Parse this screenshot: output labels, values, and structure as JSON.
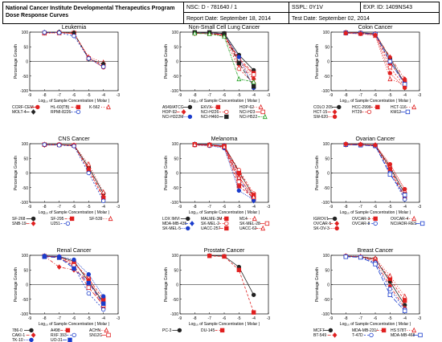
{
  "header": {
    "org_line1": "National Cancer Institute Developmental Therapeutics Program",
    "org_line2": "Dose Response Curves",
    "nsc": "NSC: D - 781640 / 1",
    "sspl": "SSPL: 0Y1V",
    "exp_id": "EXP. ID: 1409NS43",
    "report_date": "Report Date: September 18, 2014",
    "test_date": "Test Date: September 02, 2014"
  },
  "chart_data": [
    {
      "type": "line",
      "title": "Leukemia",
      "xlabel": "Log₁₀ of Sample Concentration ( Molar )",
      "ylabel": "Percentage Growth",
      "x": [
        -8,
        -7,
        -6,
        -5,
        -4
      ],
      "xlim": [
        -9,
        -3
      ],
      "ylim": [
        -100,
        100
      ],
      "xticks": [
        -9,
        -8,
        -7,
        -6,
        -5,
        -4,
        -3
      ],
      "yticks": [
        -100,
        -50,
        0,
        50,
        100
      ],
      "grid": false,
      "series": [
        {
          "name": "CCRF-CEM",
          "color": "#e02020",
          "values": [
            98,
            99,
            95,
            12,
            -20
          ]
        },
        {
          "name": "HL-60(TB)",
          "color": "#e02020",
          "values": [
            97,
            98,
            97,
            10,
            -12
          ]
        },
        {
          "name": "K-562",
          "color": "#e02020",
          "values": [
            96,
            97,
            96,
            15,
            -3
          ]
        },
        {
          "name": "MOLT-4",
          "color": "#222222",
          "values": [
            99,
            100,
            98,
            8,
            -8
          ]
        },
        {
          "name": "RPMI-8226",
          "color": "#1a3ccc",
          "values": [
            99,
            98,
            87,
            10,
            -18
          ]
        }
      ]
    },
    {
      "type": "line",
      "title": "Non-Small Cell Lung Cancer",
      "xlabel": "Log₁₀ of Sample Concentration ( Molar )",
      "ylabel": "Percentage Growth",
      "x": [
        -8,
        -7,
        -6,
        -5,
        -4
      ],
      "xlim": [
        -9,
        -3
      ],
      "ylim": [
        -100,
        100
      ],
      "xticks": [
        -9,
        -8,
        -7,
        -6,
        -5,
        -4,
        -3
      ],
      "yticks": [
        -100,
        -50,
        0,
        50,
        100
      ],
      "grid": false,
      "series": [
        {
          "name": "A549/ATCC",
          "color": "#222222",
          "values": [
            99,
            98,
            96,
            22,
            -30
          ]
        },
        {
          "name": "EKVX",
          "color": "#e02020",
          "values": [
            97,
            95,
            90,
            10,
            -40
          ]
        },
        {
          "name": "HOP-62",
          "color": "#e02020",
          "values": [
            98,
            96,
            92,
            0,
            -55
          ]
        },
        {
          "name": "HOP-92",
          "color": "#e02020",
          "values": [
            95,
            96,
            92,
            -10,
            -60
          ]
        },
        {
          "name": "NCI-H226",
          "color": "#e02020",
          "values": [
            96,
            95,
            88,
            -25,
            -75
          ]
        },
        {
          "name": "NCI-H23",
          "color": "#e02020",
          "values": [
            97,
            96,
            90,
            5,
            -45
          ]
        },
        {
          "name": "NCI-H322M",
          "color": "#1a3ccc",
          "values": [
            98,
            97,
            94,
            15,
            -90
          ]
        },
        {
          "name": "NCI-H460",
          "color": "#222222",
          "values": [
            99,
            99,
            95,
            -5,
            -85
          ]
        },
        {
          "name": "NCI-H522",
          "color": "#22a022",
          "values": [
            96,
            94,
            85,
            -60,
            -70
          ]
        }
      ]
    },
    {
      "type": "line",
      "title": "Colon Cancer",
      "xlabel": "Log₁₀ of Sample Concentration ( Molar )",
      "ylabel": "Percentage Growth",
      "x": [
        -8,
        -7,
        -6,
        -5,
        -4
      ],
      "xlim": [
        -9,
        -3
      ],
      "ylim": [
        -100,
        100
      ],
      "xticks": [
        -9,
        -8,
        -7,
        -6,
        -5,
        -4,
        -3
      ],
      "yticks": [
        -100,
        -50,
        0,
        50,
        100
      ],
      "grid": false,
      "series": [
        {
          "name": "COLO 205",
          "color": "#222222",
          "values": [
            99,
            98,
            95,
            10,
            -75
          ]
        },
        {
          "name": "HCC-2998",
          "color": "#e02020",
          "values": [
            98,
            96,
            93,
            -5,
            -70
          ]
        },
        {
          "name": "HCT-116",
          "color": "#e02020",
          "values": [
            97,
            95,
            88,
            -60,
            -80
          ]
        },
        {
          "name": "HCT-15",
          "color": "#e02020",
          "values": [
            98,
            97,
            94,
            15,
            -60
          ]
        },
        {
          "name": "HT29",
          "color": "#e02020",
          "values": [
            99,
            97,
            92,
            -20,
            -85
          ]
        },
        {
          "name": "KM12",
          "color": "#1a3ccc",
          "values": [
            97,
            96,
            93,
            0,
            -78
          ]
        },
        {
          "name": "SW-620",
          "color": "#e02020",
          "values": [
            96,
            94,
            90,
            -40,
            -90
          ]
        }
      ]
    },
    {
      "type": "line",
      "title": "CNS Cancer",
      "xlabel": "Log₁₀ of Sample Concentration ( Molar )",
      "ylabel": "Percentage Growth",
      "x": [
        -8,
        -7,
        -6,
        -5,
        -4
      ],
      "xlim": [
        -9,
        -3
      ],
      "ylim": [
        -100,
        100
      ],
      "xticks": [
        -9,
        -8,
        -7,
        -6,
        -5,
        -4,
        -3
      ],
      "yticks": [
        -100,
        -50,
        0,
        50,
        100
      ],
      "grid": false,
      "series": [
        {
          "name": "SF-268",
          "color": "#222222",
          "values": [
            96,
            97,
            95,
            20,
            -70
          ]
        },
        {
          "name": "SF-295",
          "color": "#e02020",
          "values": [
            97,
            96,
            94,
            10,
            -85
          ]
        },
        {
          "name": "SF-539",
          "color": "#e02020",
          "values": [
            98,
            97,
            95,
            30,
            -65
          ]
        },
        {
          "name": "SNB-19",
          "color": "#e02020",
          "values": [
            95,
            96,
            93,
            15,
            -80
          ]
        },
        {
          "name": "U251",
          "color": "#1a3ccc",
          "values": [
            97,
            95,
            92,
            0,
            -95
          ]
        }
      ]
    },
    {
      "type": "line",
      "title": "Melanoma",
      "xlabel": "Log₁₀ of Sample Concentration ( Molar )",
      "ylabel": "Percentage Growth",
      "x": [
        -8,
        -7,
        -6,
        -5,
        -4
      ],
      "xlim": [
        -9,
        -3
      ],
      "ylim": [
        -100,
        100
      ],
      "xticks": [
        -9,
        -8,
        -7,
        -6,
        -5,
        -4,
        -3
      ],
      "yticks": [
        -100,
        -50,
        0,
        50,
        100
      ],
      "grid": false,
      "series": [
        {
          "name": "LOX IMVI",
          "color": "#222222",
          "values": [
            98,
            97,
            93,
            5,
            -80
          ]
        },
        {
          "name": "MALME-3M",
          "color": "#e02020",
          "values": [
            96,
            95,
            88,
            -45,
            -85
          ]
        },
        {
          "name": "M14",
          "color": "#e02020",
          "values": [
            97,
            96,
            92,
            -10,
            -90
          ]
        },
        {
          "name": "MDA-MB-435",
          "color": "#1a3ccc",
          "values": [
            99,
            97,
            94,
            -20,
            -95
          ]
        },
        {
          "name": "SK-MEL-2",
          "color": "#e02020",
          "values": [
            95,
            94,
            90,
            10,
            -70
          ]
        },
        {
          "name": "SK-MEL-28",
          "color": "#e02020",
          "values": [
            97,
            95,
            91,
            -30,
            -88
          ]
        },
        {
          "name": "SK-MEL-5",
          "color": "#1a3ccc",
          "values": [
            96,
            93,
            85,
            -60,
            -92
          ]
        },
        {
          "name": "UACC-257",
          "color": "#e02020",
          "values": [
            98,
            96,
            92,
            0,
            -75
          ]
        },
        {
          "name": "UACC-62",
          "color": "#e02020",
          "values": [
            97,
            95,
            90,
            -15,
            -82
          ]
        }
      ]
    },
    {
      "type": "line",
      "title": "Ovarian Cancer",
      "xlabel": "Log₁₀ of Sample Concentration ( Molar )",
      "ylabel": "Percentage Growth",
      "x": [
        -8,
        -7,
        -6,
        -5,
        -4
      ],
      "xlim": [
        -9,
        -3
      ],
      "ylim": [
        -100,
        100
      ],
      "xticks": [
        -9,
        -8,
        -7,
        -6,
        -5,
        -4,
        -3
      ],
      "yticks": [
        -100,
        -50,
        0,
        50,
        100
      ],
      "grid": false,
      "series": [
        {
          "name": "IGROV1",
          "color": "#222222",
          "values": [
            98,
            97,
            95,
            20,
            -70
          ]
        },
        {
          "name": "OVCAR-3",
          "color": "#e02020",
          "values": [
            97,
            96,
            93,
            10,
            -85
          ]
        },
        {
          "name": "OVCAR-4",
          "color": "#e02020",
          "values": [
            99,
            98,
            96,
            25,
            -60
          ]
        },
        {
          "name": "OVCAR-5",
          "color": "#e02020",
          "values": [
            96,
            97,
            94,
            15,
            -80
          ]
        },
        {
          "name": "OVCAR-8",
          "color": "#1a3ccc",
          "values": [
            98,
            96,
            92,
            0,
            -90
          ]
        },
        {
          "name": "NCI/ADR-RES",
          "color": "#1a3ccc",
          "values": [
            97,
            95,
            93,
            -5,
            -75
          ]
        },
        {
          "name": "SK-OV-3",
          "color": "#e02020",
          "values": [
            99,
            97,
            95,
            30,
            -55
          ]
        }
      ]
    },
    {
      "type": "line",
      "title": "Renal Cancer",
      "xlabel": "Log₁₀ of Sample Concentration ( Molar )",
      "ylabel": "Percentage Growth",
      "x": [
        -8,
        -7,
        -6,
        -5,
        -4
      ],
      "xlim": [
        -9,
        -3
      ],
      "ylim": [
        -100,
        100
      ],
      "xticks": [
        -9,
        -8,
        -7,
        -6,
        -5,
        -4,
        -3
      ],
      "yticks": [
        -100,
        -50,
        0,
        50,
        100
      ],
      "grid": false,
      "series": [
        {
          "name": "786-0",
          "color": "#222222",
          "values": [
            97,
            95,
            80,
            10,
            -60
          ]
        },
        {
          "name": "A498",
          "color": "#e02020",
          "values": [
            96,
            94,
            75,
            20,
            -50
          ]
        },
        {
          "name": "ACHN",
          "color": "#e02020",
          "values": [
            98,
            95,
            70,
            25,
            -75
          ]
        },
        {
          "name": "CAKI-1",
          "color": "#e02020",
          "values": [
            97,
            60,
            50,
            15,
            -80
          ]
        },
        {
          "name": "RXF 393",
          "color": "#1a3ccc",
          "values": [
            96,
            93,
            60,
            -30,
            -85
          ]
        },
        {
          "name": "SN12C",
          "color": "#e02020",
          "values": [
            97,
            92,
            65,
            -10,
            -70
          ]
        },
        {
          "name": "TK-10",
          "color": "#1a3ccc",
          "values": [
            98,
            96,
            85,
            35,
            -40
          ]
        },
        {
          "name": "UO-31",
          "color": "#1a3ccc",
          "values": [
            95,
            92,
            55,
            5,
            -65
          ]
        }
      ]
    },
    {
      "type": "line",
      "title": "Prostate Cancer",
      "xlabel": "Log₁₀ of Sample Concentration ( Molar )",
      "ylabel": "Percentage Growth",
      "x": [
        -8,
        -7,
        -6,
        -5,
        -4
      ],
      "xlim": [
        -9,
        -3
      ],
      "ylim": [
        -100,
        100
      ],
      "xticks": [
        -9,
        -8,
        -7,
        -6,
        -5,
        -4,
        -3
      ],
      "yticks": [
        -100,
        -50,
        0,
        50,
        100
      ],
      "grid": false,
      "series": [
        {
          "name": "PC-3",
          "color": "#222222",
          "values": [
            null,
            99,
            97,
            60,
            -35
          ]
        },
        {
          "name": "DU-145",
          "color": "#e02020",
          "values": [
            null,
            98,
            96,
            50,
            -95
          ]
        }
      ]
    },
    {
      "type": "line",
      "title": "Breast Cancer",
      "xlabel": "Log₁₀ of Sample Concentration ( Molar )",
      "ylabel": "Percentage Growth",
      "x": [
        -8,
        -7,
        -6,
        -5,
        -4
      ],
      "xlim": [
        -9,
        -3
      ],
      "ylim": [
        -100,
        100
      ],
      "xticks": [
        -9,
        -8,
        -7,
        -6,
        -5,
        -4,
        -3
      ],
      "yticks": [
        -100,
        -50,
        0,
        50,
        100
      ],
      "grid": false,
      "series": [
        {
          "name": "MCF7",
          "color": "#222222",
          "values": [
            97,
            95,
            88,
            10,
            -70
          ]
        },
        {
          "name": "MDA-MB-231/",
          "color": "#e02020",
          "values": [
            96,
            94,
            85,
            20,
            -55
          ]
        },
        {
          "name": "HS 578T",
          "color": "#e02020",
          "values": [
            98,
            96,
            90,
            30,
            -40
          ]
        },
        {
          "name": "BT-549",
          "color": "#e02020",
          "values": [
            97,
            95,
            80,
            -5,
            -80
          ]
        },
        {
          "name": "T-47D",
          "color": "#1a3ccc",
          "values": [
            96,
            94,
            75,
            -15,
            -85
          ]
        },
        {
          "name": "MDA-MB-468",
          "color": "#1a3ccc",
          "values": [
            95,
            93,
            70,
            -35,
            -90
          ]
        }
      ]
    }
  ]
}
